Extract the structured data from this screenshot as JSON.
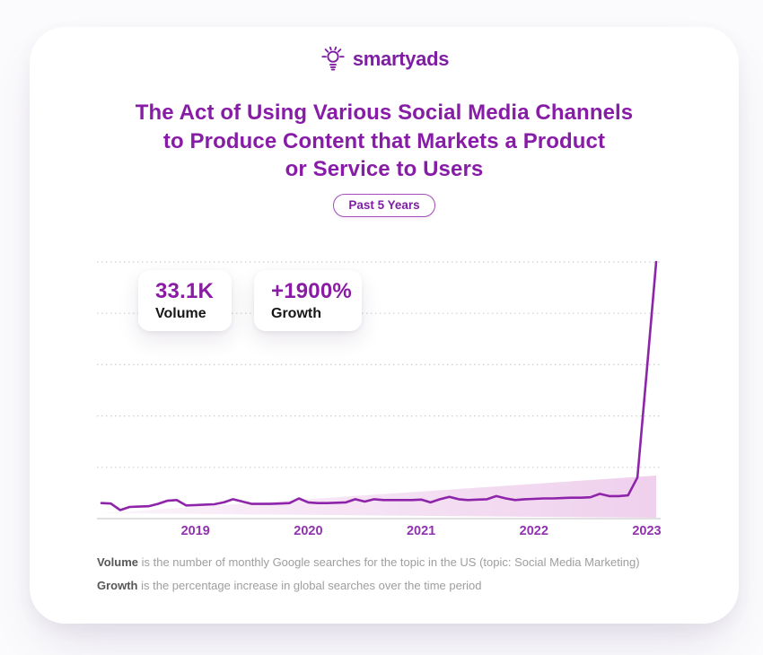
{
  "brand": {
    "name": "smartyads",
    "icon": "lightbulb-icon",
    "color": "#7e1fa3"
  },
  "title": {
    "lines": [
      "The Act of Using Various Social Media Channels",
      "to Produce Content that Markets a Product",
      "or Service to Users"
    ],
    "color": "#871da6"
  },
  "badge": {
    "label": "Past 5 Years"
  },
  "stats": [
    {
      "value": "33.1K",
      "label": "Volume"
    },
    {
      "value": "+1900%",
      "label": "Growth"
    }
  ],
  "chart_data": {
    "type": "area",
    "title": "",
    "xlabel": "",
    "ylabel": "",
    "x_unit": "month",
    "x_start_month": "2018-03",
    "x_end_month": "2023-02",
    "x_tick_labels": [
      "2019",
      "2020",
      "2021",
      "2022",
      "2023"
    ],
    "x_tick_month_indices": [
      10,
      22,
      34,
      46,
      58
    ],
    "ylim": [
      0,
      33.1
    ],
    "y_unit": "K monthly searches",
    "gridlines": 5,
    "grid_style": "dotted-horizontal",
    "legend": "none",
    "peak_value": 33.1,
    "baseline_value_approx": 2.0,
    "series": [
      {
        "name": "monthly_search_volume_k",
        "values": [
          2.0,
          1.95,
          1.1,
          1.5,
          1.55,
          1.6,
          1.9,
          2.3,
          2.4,
          1.7,
          1.75,
          1.8,
          1.85,
          2.1,
          2.5,
          2.2,
          1.9,
          1.9,
          1.9,
          1.95,
          2.0,
          2.6,
          2.1,
          2.0,
          2.0,
          2.05,
          2.1,
          2.5,
          2.2,
          2.5,
          2.4,
          2.4,
          2.4,
          2.4,
          2.45,
          2.1,
          2.5,
          2.8,
          2.5,
          2.4,
          2.45,
          2.5,
          2.9,
          2.6,
          2.4,
          2.5,
          2.55,
          2.6,
          2.6,
          2.65,
          2.7,
          2.7,
          2.75,
          3.2,
          2.9,
          2.9,
          3.0,
          5.3,
          19.0,
          33.1
        ]
      }
    ],
    "colors": {
      "line": "#8e24aa",
      "area_wedge": "#d98fd4",
      "grid": "#cfcfcf",
      "axis": "#d6d6d6",
      "tick_label": "#9032ae"
    }
  },
  "footnotes": [
    {
      "term": "Volume",
      "text": " is the number of monthly Google searches for the topic in the US (topic: Social Media Marketing)"
    },
    {
      "term": "Growth",
      "text": " is the percentage increase in global searches over the time period"
    }
  ]
}
